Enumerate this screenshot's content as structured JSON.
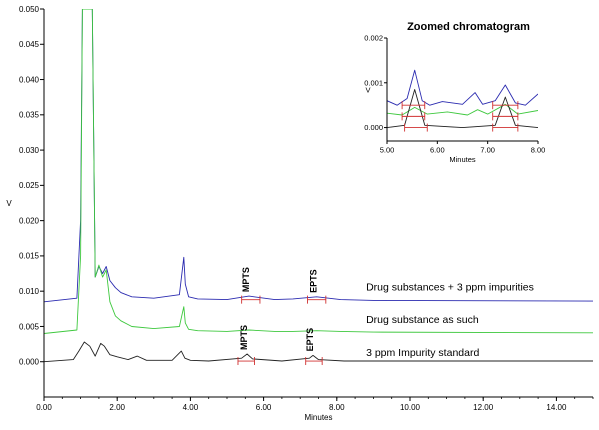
{
  "chart_data": [
    {
      "type": "line",
      "xlabel": "Minutes",
      "ylabel": "V",
      "xlim": [
        0,
        15
      ],
      "ylim": [
        -0.005,
        0.05
      ],
      "xticks": [
        "0.00",
        "2.00",
        "4.00",
        "6.00",
        "8.00",
        "10.00",
        "12.00",
        "14.00"
      ],
      "yticks": [
        "0.000",
        "0.005",
        "0.010",
        "0.015",
        "0.020",
        "0.025",
        "0.030",
        "0.035",
        "0.040",
        "0.045",
        "0.050"
      ],
      "grid": false,
      "legend": "none",
      "series": [
        {
          "color": "#2b2bb0",
          "x": [
            0.0,
            0.9,
            1.0,
            1.05,
            1.15,
            1.25,
            1.32,
            1.4,
            1.5,
            1.6,
            1.7,
            1.8,
            1.95,
            2.1,
            2.4,
            3.0,
            3.7,
            3.82,
            3.86,
            3.95,
            4.2,
            5.0,
            5.6,
            6.3,
            6.8,
            7.45,
            8.1,
            9.0,
            15.0
          ],
          "y": [
            0.0085,
            0.009,
            0.02,
            0.05,
            0.05,
            0.05,
            0.05,
            0.012,
            0.0135,
            0.0125,
            0.0135,
            0.0115,
            0.0105,
            0.0098,
            0.0092,
            0.009,
            0.0095,
            0.0148,
            0.011,
            0.0092,
            0.0089,
            0.0088,
            0.0093,
            0.0088,
            0.0089,
            0.0092,
            0.0088,
            0.0087,
            0.0086
          ],
          "annotations": [
            {
              "text": "MPTS",
              "x": 5.6
            },
            {
              "text": "EPTS",
              "x": 7.45
            }
          ]
        },
        {
          "color": "#3ec83e",
          "x": [
            0.0,
            0.9,
            1.0,
            1.05,
            1.15,
            1.25,
            1.32,
            1.4,
            1.5,
            1.6,
            1.7,
            1.8,
            1.95,
            2.1,
            2.4,
            3.0,
            3.7,
            3.82,
            3.86,
            3.95,
            4.2,
            5.0,
            5.6,
            6.3,
            6.8,
            7.45,
            8.1,
            9.0,
            15.0
          ],
          "y": [
            0.004,
            0.0045,
            0.015,
            0.05,
            0.05,
            0.05,
            0.05,
            0.012,
            0.0137,
            0.012,
            0.013,
            0.0085,
            0.0065,
            0.0058,
            0.005,
            0.0047,
            0.005,
            0.0078,
            0.0055,
            0.0046,
            0.0044,
            0.0043,
            0.0045,
            0.0043,
            0.0043,
            0.0044,
            0.0043,
            0.0042,
            0.0041
          ]
        },
        {
          "color": "#222222",
          "x": [
            0.0,
            0.8,
            0.95,
            1.1,
            1.25,
            1.4,
            1.55,
            1.65,
            1.8,
            2.0,
            2.3,
            2.55,
            2.8,
            3.5,
            3.75,
            3.85,
            4.0,
            4.5,
            5.4,
            5.55,
            5.7,
            6.5,
            7.25,
            7.35,
            7.5,
            8.2,
            15.0
          ],
          "y": [
            0.0,
            0.0003,
            0.0015,
            0.0028,
            0.0022,
            0.0008,
            0.0026,
            0.0022,
            0.001,
            0.0007,
            0.0003,
            0.0008,
            0.0002,
            0.0002,
            0.0015,
            0.0005,
            0.0002,
            0.0001,
            0.0005,
            0.0011,
            0.0004,
            0.0001,
            0.0005,
            0.0009,
            0.0003,
            0.0001,
            0.0001
          ],
          "annotations": [
            {
              "text": "MPTS",
              "x": 5.55
            },
            {
              "text": "EPTS",
              "x": 7.35
            }
          ]
        }
      ],
      "annotations": [
        {
          "text": "Drug substances + 3 ppm impurities",
          "x": 8.8,
          "y": 0.0101
        },
        {
          "text": "Drug substance as such",
          "x": 8.8,
          "y": 0.0055
        },
        {
          "text": "3 ppm Impurity standard",
          "x": 8.8,
          "y": 0.0008
        }
      ]
    },
    {
      "type": "line",
      "title": "Zoomed chromatogram",
      "xlabel": "Minutes",
      "ylabel": "V",
      "xlim": [
        5.0,
        8.0
      ],
      "ylim": [
        -0.0003,
        0.002
      ],
      "xticks": [
        "5.00",
        "6.00",
        "7.00",
        "8.00"
      ],
      "yticks": [
        "0.000",
        "0.001",
        "0.002"
      ],
      "grid": false,
      "legend": "none",
      "series": [
        {
          "color": "#2b2bb0",
          "x": [
            5.0,
            5.2,
            5.4,
            5.55,
            5.7,
            5.85,
            6.1,
            6.5,
            6.75,
            6.9,
            7.15,
            7.35,
            7.55,
            7.75,
            8.0
          ],
          "y": [
            0.0006,
            0.0005,
            0.00065,
            0.00128,
            0.0006,
            0.0005,
            0.00058,
            0.00052,
            0.00078,
            0.00052,
            0.0006,
            0.00095,
            0.00055,
            0.0005,
            0.00075
          ]
        },
        {
          "color": "#3ec83e",
          "x": [
            5.0,
            5.3,
            5.55,
            5.8,
            6.2,
            6.6,
            6.8,
            7.0,
            7.35,
            7.6,
            8.0
          ],
          "y": [
            0.00032,
            0.00028,
            0.00045,
            0.0003,
            0.00035,
            0.00028,
            0.0004,
            0.0003,
            0.00052,
            0.0003,
            0.00038
          ]
        },
        {
          "color": "#222222",
          "x": [
            5.0,
            5.35,
            5.55,
            5.75,
            6.5,
            7.15,
            7.35,
            7.55,
            8.0
          ],
          "y": [
            0.0,
            5e-05,
            0.00085,
            5e-05,
            0.0,
            5e-05,
            0.00068,
            5e-05,
            0.0
          ]
        }
      ]
    }
  ]
}
